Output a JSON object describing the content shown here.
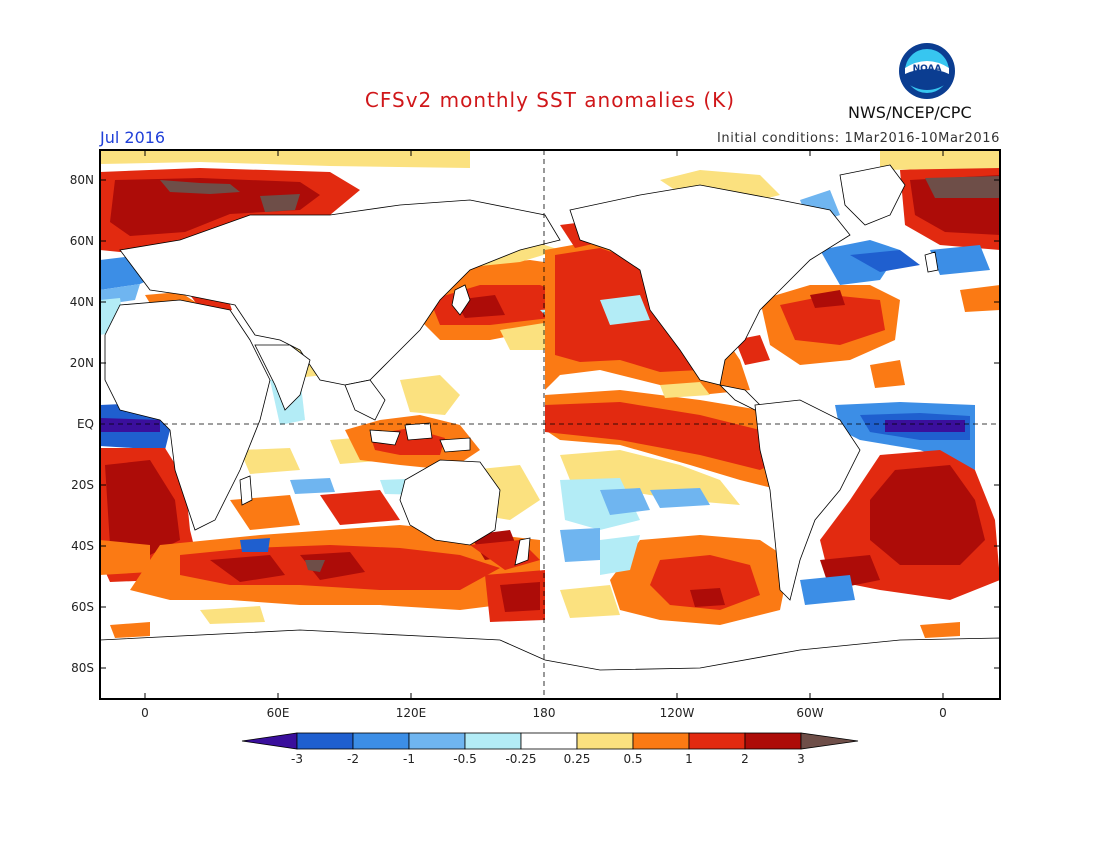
{
  "title": "CFSv2 monthly SST anomalies (K)",
  "month": "Jul 2016",
  "initial_conditions": "Initial conditions: 1Mar2016-10Mar2016",
  "agency": "NWS/NCEP/CPC",
  "logo_text": "NOAA",
  "lat_labels": [
    "80N",
    "60N",
    "40N",
    "20N",
    "EQ",
    "20S",
    "40S",
    "60S",
    "80S"
  ],
  "lon_labels": [
    "0",
    "60E",
    "120E",
    "180",
    "120W",
    "60W",
    "0"
  ],
  "colorbar": {
    "labels": [
      "-3",
      "-2",
      "-1",
      "-0.5",
      "-0.25",
      "0.25",
      "0.5",
      "1",
      "2",
      "3"
    ],
    "colors": [
      "#3a0f9c",
      "#1f5fcf",
      "#3c8ee6",
      "#6fb5f0",
      "#b3ecf6",
      "#ffffff",
      "#fbe17f",
      "#fb7a14",
      "#e22a10",
      "#ad0c08",
      "#6e4e48"
    ]
  },
  "palette": {
    "strong_warm": "#ad0c08",
    "warm": "#e22a10",
    "moderate_warm": "#fb7a14",
    "weak_warm": "#fbe17f",
    "weak_cool": "#b3ecf6",
    "cool": "#6fb5f0",
    "moderate_cool": "#3c8ee6",
    "strong_cool": "#1f5fcf",
    "extreme_cool": "#3a0f9c",
    "extreme_warm": "#6e4e48"
  }
}
